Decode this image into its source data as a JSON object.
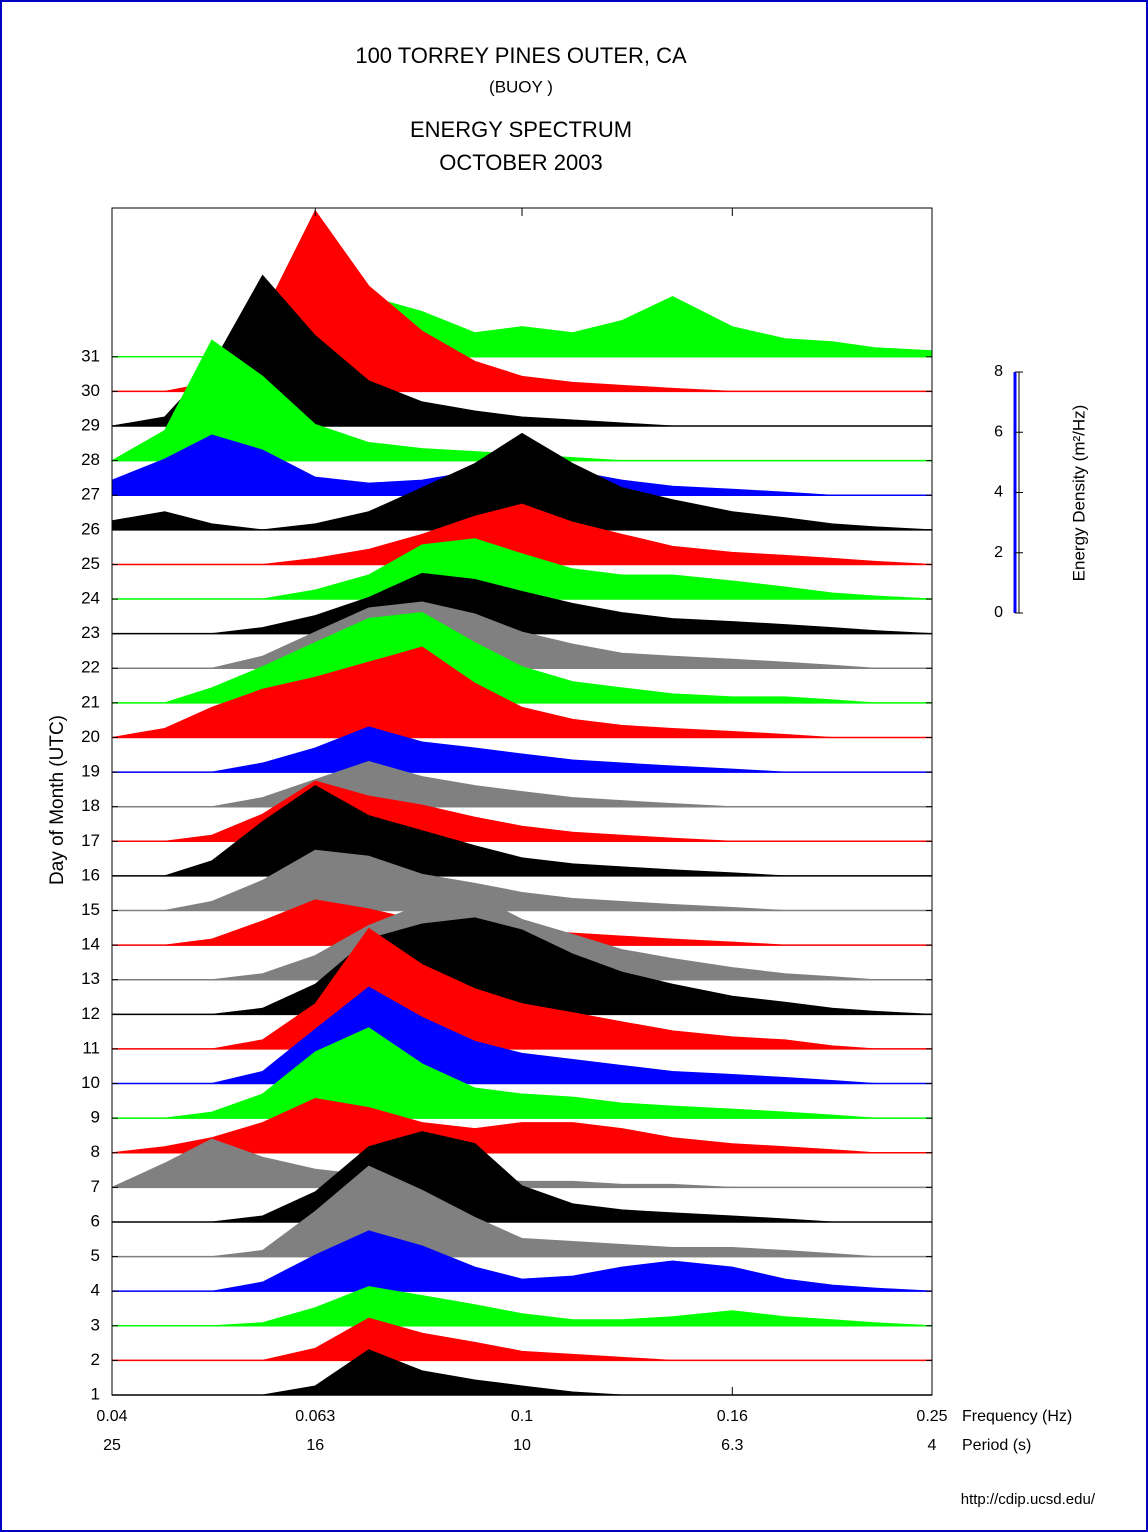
{
  "chart_data": {
    "type": "waterfall",
    "title": "100 TORREY PINES OUTER, CA",
    "subtitle": "(BUOY )",
    "title2": "ENERGY SPECTRUM",
    "title3": "OCTOBER 2003",
    "y_label": "Day of Month (UTC)",
    "x_label": "Frequency (Hz)",
    "x2_label": "Period (s)",
    "z_label": "Energy Density (m²/Hz)",
    "footer": "http://cdip.ucsd.edu/",
    "log_x": true,
    "xlim": [
      0.04,
      0.25
    ],
    "xticks": [
      0.04,
      0.063,
      0.1,
      0.16,
      0.25
    ],
    "period_ticks": [
      25,
      16,
      10,
      6.3,
      4
    ],
    "ylim": [
      1,
      35.3
    ],
    "yticks": [
      1,
      2,
      3,
      4,
      5,
      6,
      7,
      8,
      9,
      10,
      11,
      12,
      13,
      14,
      15,
      16,
      17,
      18,
      19,
      20,
      21,
      22,
      23,
      24,
      25,
      26,
      27,
      28,
      29,
      30,
      31
    ],
    "zlim": [
      0,
      8
    ],
    "zticks": [
      0,
      2,
      4,
      6,
      8
    ],
    "z_color": "#0000ff",
    "x": [
      0.04,
      0.045,
      0.05,
      0.056,
      0.063,
      0.071,
      0.08,
      0.09,
      0.1,
      0.112,
      0.125,
      0.14,
      0.16,
      0.18,
      0.2,
      0.22,
      0.25
    ],
    "series": [
      {
        "day": 1,
        "color": "#000000",
        "values": [
          0,
          0,
          0,
          0,
          0.3,
          1.5,
          0.8,
          0.5,
          0.3,
          0.1,
          0,
          0,
          0,
          0,
          0,
          0,
          0
        ]
      },
      {
        "day": 2,
        "color": "#ff0000",
        "values": [
          0,
          0,
          0,
          0,
          0.4,
          1.4,
          0.9,
          0.6,
          0.3,
          0.2,
          0.1,
          0,
          0,
          0,
          0,
          0,
          0
        ]
      },
      {
        "day": 3,
        "color": "#00ff00",
        "values": [
          0,
          0,
          0,
          0.1,
          0.6,
          1.3,
          1.0,
          0.7,
          0.4,
          0.2,
          0.2,
          0.3,
          0.5,
          0.3,
          0.2,
          0.1,
          0
        ]
      },
      {
        "day": 4,
        "color": "#0000ff",
        "values": [
          0,
          0,
          0,
          0.3,
          1.2,
          2.0,
          1.5,
          0.8,
          0.4,
          0.5,
          0.8,
          1.0,
          0.8,
          0.4,
          0.2,
          0.1,
          0
        ]
      },
      {
        "day": 5,
        "color": "#808080",
        "values": [
          0,
          0,
          0,
          0.2,
          1.5,
          3.0,
          2.2,
          1.3,
          0.6,
          0.5,
          0.4,
          0.3,
          0.3,
          0.2,
          0.1,
          0,
          0
        ]
      },
      {
        "day": 6,
        "color": "#000000",
        "values": [
          0,
          0,
          0,
          0.2,
          1.0,
          2.5,
          3.0,
          2.6,
          1.2,
          0.6,
          0.4,
          0.3,
          0.2,
          0.1,
          0,
          0,
          0
        ]
      },
      {
        "day": 7,
        "color": "#808080",
        "values": [
          0,
          0.8,
          1.6,
          1.0,
          0.6,
          0.4,
          0.3,
          0.3,
          0.2,
          0.2,
          0.1,
          0.1,
          0,
          0,
          0,
          0,
          0
        ]
      },
      {
        "day": 8,
        "color": "#ff0000",
        "values": [
          0,
          0.2,
          0.5,
          1.0,
          1.8,
          1.5,
          1.0,
          0.8,
          1.0,
          1.0,
          0.8,
          0.5,
          0.3,
          0.2,
          0.1,
          0,
          0
        ]
      },
      {
        "day": 9,
        "color": "#00ff00",
        "values": [
          0,
          0,
          0.2,
          0.8,
          2.2,
          3.0,
          1.8,
          1.0,
          0.8,
          0.7,
          0.5,
          0.4,
          0.3,
          0.2,
          0.1,
          0,
          0
        ]
      },
      {
        "day": 10,
        "color": "#0000ff",
        "values": [
          0,
          0,
          0,
          0.4,
          1.8,
          3.2,
          2.2,
          1.4,
          1.0,
          0.8,
          0.6,
          0.4,
          0.3,
          0.2,
          0.1,
          0,
          0
        ]
      },
      {
        "day": 11,
        "color": "#ff0000",
        "values": [
          0,
          0,
          0,
          0.3,
          1.5,
          4.0,
          2.8,
          2.0,
          1.5,
          1.2,
          0.9,
          0.6,
          0.4,
          0.3,
          0.1,
          0,
          0
        ]
      },
      {
        "day": 12,
        "color": "#000000",
        "values": [
          0,
          0,
          0,
          0.2,
          1.0,
          2.5,
          3.0,
          3.2,
          2.8,
          2.0,
          1.4,
          1.0,
          0.6,
          0.4,
          0.2,
          0.1,
          0
        ]
      },
      {
        "day": 13,
        "color": "#808080",
        "values": [
          0,
          0,
          0,
          0.2,
          0.8,
          1.8,
          2.5,
          2.8,
          2.0,
          1.5,
          1.0,
          0.7,
          0.4,
          0.2,
          0.1,
          0,
          0
        ]
      },
      {
        "day": 14,
        "color": "#ff0000",
        "values": [
          0,
          0,
          0.2,
          0.8,
          1.5,
          1.2,
          0.8,
          0.6,
          0.5,
          0.4,
          0.3,
          0.2,
          0.1,
          0,
          0,
          0,
          0
        ]
      },
      {
        "day": 15,
        "color": "#808080",
        "values": [
          0,
          0,
          0.3,
          1.0,
          2.0,
          1.8,
          1.2,
          0.9,
          0.6,
          0.4,
          0.3,
          0.2,
          0.1,
          0,
          0,
          0,
          0
        ]
      },
      {
        "day": 16,
        "color": "#000000",
        "values": [
          0,
          0,
          0.5,
          1.8,
          3.0,
          2.0,
          1.5,
          1.0,
          0.6,
          0.4,
          0.3,
          0.2,
          0.1,
          0,
          0,
          0,
          0
        ]
      },
      {
        "day": 17,
        "color": "#ff0000",
        "values": [
          0,
          0,
          0.2,
          0.9,
          2.0,
          1.5,
          1.2,
          0.8,
          0.5,
          0.3,
          0.2,
          0.1,
          0,
          0,
          0,
          0,
          0
        ]
      },
      {
        "day": 18,
        "color": "#808080",
        "values": [
          0,
          0,
          0,
          0.3,
          0.9,
          1.5,
          1.0,
          0.7,
          0.5,
          0.3,
          0.2,
          0.1,
          0,
          0,
          0,
          0,
          0
        ]
      },
      {
        "day": 19,
        "color": "#0000ff",
        "values": [
          0,
          0,
          0,
          0.3,
          0.8,
          1.5,
          1.0,
          0.8,
          0.6,
          0.4,
          0.3,
          0.2,
          0.1,
          0,
          0,
          0,
          0
        ]
      },
      {
        "day": 20,
        "color": "#ff0000",
        "values": [
          0,
          0.3,
          1.0,
          1.6,
          2.0,
          2.5,
          3.0,
          1.8,
          1.0,
          0.6,
          0.4,
          0.3,
          0.2,
          0.1,
          0,
          0,
          0
        ]
      },
      {
        "day": 21,
        "color": "#00ff00",
        "values": [
          0,
          0,
          0.5,
          1.2,
          2.0,
          2.8,
          3.0,
          2.0,
          1.2,
          0.7,
          0.5,
          0.3,
          0.2,
          0.2,
          0.1,
          0,
          0
        ]
      },
      {
        "day": 22,
        "color": "#808080",
        "values": [
          0,
          0,
          0,
          0.4,
          1.2,
          2.0,
          2.2,
          1.8,
          1.2,
          0.8,
          0.5,
          0.4,
          0.3,
          0.2,
          0.1,
          0,
          0
        ]
      },
      {
        "day": 23,
        "color": "#000000",
        "values": [
          0,
          0,
          0,
          0.2,
          0.6,
          1.2,
          2.0,
          1.8,
          1.4,
          1.0,
          0.7,
          0.5,
          0.4,
          0.3,
          0.2,
          0.1,
          0
        ]
      },
      {
        "day": 24,
        "color": "#00ff00",
        "values": [
          0,
          0,
          0,
          0,
          0.3,
          0.8,
          1.8,
          2.0,
          1.5,
          1.0,
          0.8,
          0.8,
          0.6,
          0.4,
          0.2,
          0.1,
          0
        ]
      },
      {
        "day": 25,
        "color": "#ff0000",
        "values": [
          0,
          0,
          0,
          0,
          0.2,
          0.5,
          1.0,
          1.6,
          2.0,
          1.4,
          1.0,
          0.6,
          0.4,
          0.3,
          0.2,
          0.1,
          0
        ]
      },
      {
        "day": 26,
        "color": "#000000",
        "values": [
          0.3,
          0.6,
          0.2,
          0,
          0.2,
          0.6,
          1.4,
          2.2,
          3.2,
          2.2,
          1.4,
          1.0,
          0.6,
          0.4,
          0.2,
          0.1,
          0
        ]
      },
      {
        "day": 27,
        "color": "#0000ff",
        "values": [
          0.5,
          1.2,
          2.0,
          1.5,
          0.6,
          0.4,
          0.5,
          0.8,
          1.2,
          0.8,
          0.5,
          0.3,
          0.2,
          0.1,
          0,
          0,
          0
        ]
      },
      {
        "day": 28,
        "color": "#00ff00",
        "values": [
          0,
          1.0,
          4.0,
          2.8,
          1.2,
          0.6,
          0.4,
          0.3,
          0.2,
          0.1,
          0,
          0,
          0,
          0,
          0,
          0,
          0
        ]
      },
      {
        "day": 29,
        "color": "#000000",
        "values": [
          0,
          0.3,
          2.0,
          5.0,
          3.0,
          1.5,
          0.8,
          0.5,
          0.3,
          0.2,
          0.1,
          0,
          0,
          0,
          0,
          0,
          0
        ]
      },
      {
        "day": 30,
        "color": "#ff0000",
        "values": [
          0,
          0,
          0.3,
          2.5,
          6.0,
          3.5,
          2.0,
          1.0,
          0.5,
          0.3,
          0.2,
          0.1,
          0,
          0,
          0,
          0,
          0
        ]
      },
      {
        "day": 31,
        "color": "#00ff00",
        "values": [
          0,
          0,
          0,
          0.5,
          1.5,
          2.0,
          1.5,
          0.8,
          1.0,
          0.8,
          1.2,
          2.0,
          1.0,
          0.6,
          0.5,
          0.3,
          0.2
        ]
      }
    ]
  }
}
